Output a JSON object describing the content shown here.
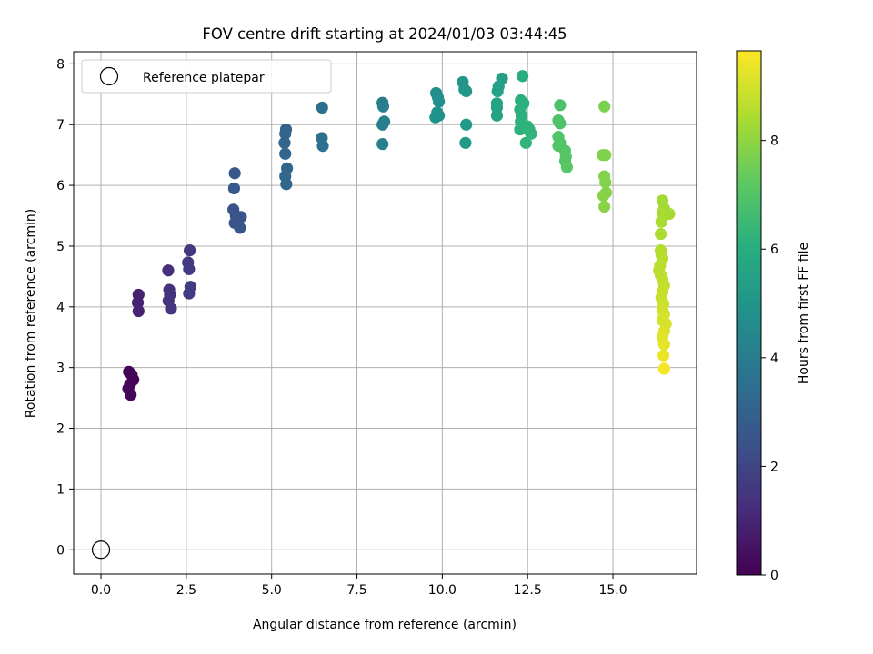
{
  "chart_data": {
    "type": "scatter",
    "title": "FOV centre drift starting at 2024/01/03 03:44:45",
    "xlabel": "Angular distance from reference (arcmin)",
    "ylabel": "Rotation from reference (arcmin)",
    "xlim": [
      -0.8,
      17.45
    ],
    "ylim": [
      -0.4,
      8.2
    ],
    "xticks": [
      "0.0",
      "2.5",
      "5.0",
      "7.5",
      "10.0",
      "12.5",
      "15.0"
    ],
    "xtick_values": [
      0,
      2.5,
      5,
      7.5,
      10,
      12.5,
      15
    ],
    "yticks": [
      "0",
      "1",
      "2",
      "3",
      "4",
      "5",
      "6",
      "7",
      "8"
    ],
    "ytick_values": [
      0,
      1,
      2,
      3,
      4,
      5,
      6,
      7,
      8
    ],
    "grid": true,
    "legend": {
      "placement": "top-left",
      "entries": [
        {
          "label": "Reference platepar",
          "marker": "open-circle"
        }
      ]
    },
    "reference_point": {
      "x": 0,
      "y": 0
    },
    "colorbar": {
      "label": "Hours from first FF file",
      "colormap": "viridis",
      "range": [
        0,
        9.65
      ],
      "ticks": [
        "0",
        "2",
        "4",
        "6",
        "8"
      ],
      "tick_values": [
        0,
        2,
        4,
        6,
        8
      ]
    },
    "series": [
      {
        "points": [
          [
            0.82,
            2.93,
            0.1
          ],
          [
            0.9,
            2.88,
            0.12
          ],
          [
            0.95,
            2.8,
            0.15
          ],
          [
            0.85,
            2.72,
            0.15
          ],
          [
            0.8,
            2.65,
            0.18
          ],
          [
            0.87,
            2.55,
            0.2
          ],
          [
            1.1,
            4.2,
            0.9
          ],
          [
            1.08,
            4.07,
            0.92
          ],
          [
            1.1,
            3.93,
            0.95
          ],
          [
            1.97,
            4.6,
            1.3
          ],
          [
            2.0,
            4.28,
            1.35
          ],
          [
            2.02,
            4.2,
            1.38
          ],
          [
            1.98,
            4.1,
            1.4
          ],
          [
            2.05,
            3.97,
            1.45
          ],
          [
            2.6,
            4.93,
            1.6
          ],
          [
            2.55,
            4.73,
            1.62
          ],
          [
            2.58,
            4.62,
            1.65
          ],
          [
            2.62,
            4.33,
            1.68
          ],
          [
            2.58,
            4.22,
            1.7
          ],
          [
            3.92,
            6.2,
            2.6
          ],
          [
            3.9,
            5.95,
            2.62
          ],
          [
            3.88,
            5.6,
            2.5
          ],
          [
            3.95,
            5.5,
            2.5
          ],
          [
            3.92,
            5.38,
            2.48
          ],
          [
            4.1,
            5.48,
            2.52
          ],
          [
            4.07,
            5.3,
            2.55
          ],
          [
            5.42,
            6.92,
            3.05
          ],
          [
            5.4,
            6.85,
            3.08
          ],
          [
            5.38,
            6.7,
            3.1
          ],
          [
            5.4,
            6.52,
            3.12
          ],
          [
            5.45,
            6.28,
            3.15
          ],
          [
            5.4,
            6.15,
            3.18
          ],
          [
            5.43,
            6.02,
            3.2
          ],
          [
            6.48,
            7.28,
            3.5
          ],
          [
            6.47,
            6.78,
            3.55
          ],
          [
            6.5,
            6.65,
            3.58
          ],
          [
            8.25,
            7.36,
            4.05
          ],
          [
            8.27,
            7.3,
            4.08
          ],
          [
            8.3,
            7.05,
            4.1
          ],
          [
            8.25,
            7.0,
            4.12
          ],
          [
            8.25,
            6.68,
            4.15
          ],
          [
            9.82,
            7.52,
            4.75
          ],
          [
            9.87,
            7.45,
            4.78
          ],
          [
            9.9,
            7.38,
            4.8
          ],
          [
            9.85,
            7.2,
            4.82
          ],
          [
            9.8,
            7.12,
            4.85
          ],
          [
            9.9,
            7.15,
            4.88
          ],
          [
            10.6,
            7.7,
            5.05
          ],
          [
            10.65,
            7.58,
            5.08
          ],
          [
            10.7,
            7.55,
            5.1
          ],
          [
            10.7,
            7.0,
            5.15
          ],
          [
            10.68,
            6.7,
            5.18
          ],
          [
            11.75,
            7.76,
            5.4
          ],
          [
            11.65,
            7.63,
            5.45
          ],
          [
            11.62,
            7.55,
            5.48
          ],
          [
            11.6,
            7.35,
            5.5
          ],
          [
            11.6,
            7.28,
            5.52
          ],
          [
            11.6,
            7.15,
            5.55
          ],
          [
            12.35,
            7.8,
            6.0
          ],
          [
            12.3,
            7.4,
            6.05
          ],
          [
            12.38,
            7.35,
            6.08
          ],
          [
            12.28,
            7.25,
            6.1
          ],
          [
            12.32,
            7.15,
            6.12
          ],
          [
            12.3,
            7.05,
            6.15
          ],
          [
            12.28,
            6.92,
            6.18
          ],
          [
            12.5,
            6.97,
            6.2
          ],
          [
            12.55,
            6.92,
            6.22
          ],
          [
            12.6,
            6.85,
            6.25
          ],
          [
            12.45,
            6.7,
            6.28
          ],
          [
            13.45,
            7.32,
            6.85
          ],
          [
            13.4,
            7.07,
            6.9
          ],
          [
            13.45,
            7.02,
            6.92
          ],
          [
            13.4,
            6.8,
            6.95
          ],
          [
            13.45,
            6.7,
            6.98
          ],
          [
            13.4,
            6.65,
            7.0
          ],
          [
            13.6,
            6.57,
            7.02
          ],
          [
            13.62,
            6.47,
            7.05
          ],
          [
            13.6,
            6.4,
            7.08
          ],
          [
            13.65,
            6.3,
            7.1
          ],
          [
            14.75,
            7.3,
            7.7
          ],
          [
            14.7,
            6.5,
            7.72
          ],
          [
            14.78,
            6.5,
            7.75
          ],
          [
            14.75,
            6.15,
            7.78
          ],
          [
            14.78,
            6.05,
            7.8
          ],
          [
            14.8,
            5.88,
            7.85
          ],
          [
            14.72,
            5.83,
            7.85
          ],
          [
            14.75,
            5.65,
            7.88
          ],
          [
            16.45,
            5.75,
            8.3
          ],
          [
            16.5,
            5.62,
            8.32
          ],
          [
            16.45,
            5.55,
            8.35
          ],
          [
            16.65,
            5.53,
            8.35
          ],
          [
            16.42,
            5.4,
            8.4
          ],
          [
            16.4,
            5.2,
            8.45
          ],
          [
            16.4,
            4.93,
            8.5
          ],
          [
            16.42,
            4.86,
            8.55
          ],
          [
            16.45,
            4.8,
            8.6
          ],
          [
            16.38,
            4.68,
            8.62
          ],
          [
            16.35,
            4.6,
            8.65
          ],
          [
            16.4,
            4.52,
            8.68
          ],
          [
            16.45,
            4.45,
            8.7
          ],
          [
            16.5,
            4.35,
            8.75
          ],
          [
            16.45,
            4.25,
            8.8
          ],
          [
            16.42,
            4.15,
            8.85
          ],
          [
            16.48,
            4.05,
            8.9
          ],
          [
            16.45,
            3.95,
            8.95
          ],
          [
            16.5,
            3.88,
            9.0
          ],
          [
            16.45,
            3.78,
            9.05
          ],
          [
            16.55,
            3.72,
            9.1
          ],
          [
            16.5,
            3.6,
            9.15
          ],
          [
            16.45,
            3.5,
            9.2
          ],
          [
            16.5,
            3.38,
            9.3
          ],
          [
            16.48,
            3.2,
            9.4
          ],
          [
            16.5,
            2.98,
            9.5
          ]
        ]
      }
    ]
  }
}
